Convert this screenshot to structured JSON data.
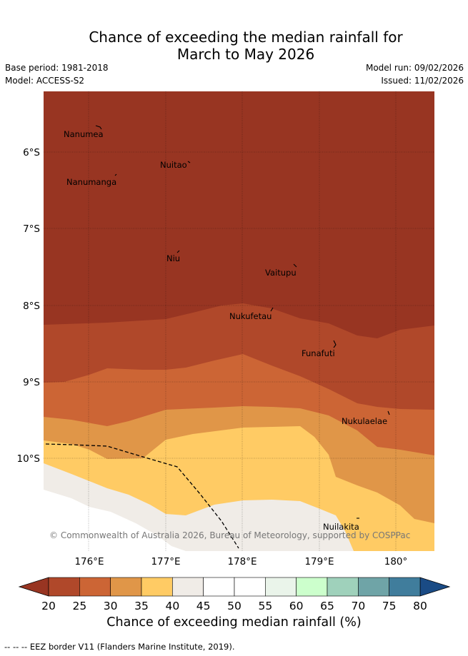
{
  "title_line1": "Chance of exceeding the median rainfall for",
  "title_line2": "March to May 2026",
  "base_period": "Base period: 1981-2018",
  "model": "Model: ACCESS-S2",
  "model_run": "Model run: 09/02/2026",
  "issued": "Issued: 11/02/2026",
  "copyright": "© Commonwealth of Australia 2026, Bureau of Meteorology, supported by COSPPac",
  "x_ticks": [
    "176°E",
    "177°E",
    "178°E",
    "179°E",
    "180°"
  ],
  "y_ticks": [
    "6°S",
    "7°S",
    "8°S",
    "9°S",
    "10°S"
  ],
  "places": [
    "Nanumea",
    "Nuitao",
    "Nanumanga",
    "Niu",
    "Vaitupu",
    "Nukufetau",
    "Funafuti",
    "Nukulaelae",
    "Nuilakita"
  ],
  "colorbar": {
    "ticks": [
      "20",
      "25",
      "30",
      "35",
      "40",
      "45",
      "50",
      "55",
      "60",
      "65",
      "70",
      "75",
      "80"
    ],
    "colors": [
      "#b0482a",
      "#cc6535",
      "#e09648",
      "#ffcb64",
      "#f0ece7",
      "#ffffff",
      "#ffffff",
      "#eaf4ea",
      "#ccffcc",
      "#9fd1bb",
      "#6fa4a7",
      "#407d9c"
    ],
    "under_color": "#983522",
    "over_color": "#1a4b85",
    "label": "Chance of exceeding median rainfall (%)"
  },
  "legend_note": "EEZ border V11 (Flanders Marine Institute, 2019).",
  "legend_dash": "-- -- --"
}
